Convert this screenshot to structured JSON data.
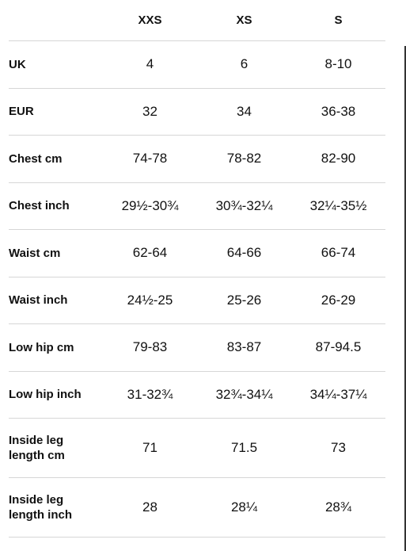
{
  "table": {
    "columns": [
      "XXS",
      "XS",
      "S"
    ],
    "rows": [
      {
        "label": "UK",
        "values": [
          "4",
          "6",
          "8-10"
        ]
      },
      {
        "label": "EUR",
        "values": [
          "32",
          "34",
          "36-38"
        ]
      },
      {
        "label": "Chest cm",
        "values": [
          "74-78",
          "78-82",
          "82-90"
        ]
      },
      {
        "label": "Chest inch",
        "values": [
          "29½-30¾",
          "30¾-32¼",
          "32¼-35½"
        ]
      },
      {
        "label": "Waist cm",
        "values": [
          "62-64",
          "64-66",
          "66-74"
        ]
      },
      {
        "label": "Waist inch",
        "values": [
          "24½-25",
          "25-26",
          "26-29"
        ]
      },
      {
        "label": "Low hip cm",
        "values": [
          "79-83",
          "83-87",
          "87-94.5"
        ]
      },
      {
        "label": "Low hip inch",
        "values": [
          "31-32¾",
          "32¾-34¼",
          "34¼-37¼"
        ]
      },
      {
        "label": "Inside leg length cm",
        "values": [
          "71",
          "71.5",
          "73"
        ]
      },
      {
        "label": "Inside leg length inch",
        "values": [
          "28",
          "28¼",
          "28¾"
        ]
      }
    ]
  }
}
